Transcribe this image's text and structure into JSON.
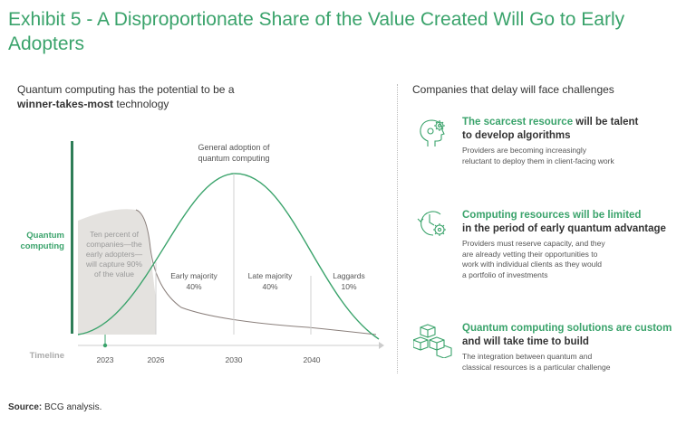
{
  "title": "Exhibit 5 - A Disproportionate Share of the Value Created Will Go to Early Adopters",
  "left_heading": {
    "line1": "Quantum computing has the potential to be a",
    "bold": "winner-takes-most",
    "rest": " technology"
  },
  "right_heading": "Companies that delay will face challenges",
  "diagram": {
    "y_label_line1": "Quantum",
    "y_label_line2": "computing",
    "x_label": "Timeline",
    "ticks": [
      "2023",
      "2026",
      "2030",
      "2040"
    ],
    "adoption_label_line1": "General adoption of",
    "adoption_label_line2": "quantum computing",
    "early_adopters_lines": [
      "Ten percent of",
      "companies—the",
      "early adopters—",
      "will capture 90%",
      "of the value"
    ],
    "segments": [
      {
        "name": "Early majority",
        "share": "40%"
      },
      {
        "name": "Late majority",
        "share": "40%"
      },
      {
        "name": "Laggards",
        "share": "10%"
      }
    ],
    "colors": {
      "adoption_curve": "#3aa36b",
      "value_curve": "#8a7f7b",
      "shaded_area": "#e4e2df",
      "axis": "#2e7d57"
    }
  },
  "challenges": [
    {
      "icon": "brain-gear-icon",
      "highlight": "The scarcest resource",
      "title_rest": " will be talent",
      "title_line2": "to develop algorithms",
      "body_lines": [
        "Providers are becoming increasingly",
        "reluctant to deploy them in client-facing work"
      ]
    },
    {
      "icon": "clock-gear-icon",
      "highlight": "Computing resources will be limited",
      "title_rest": "",
      "title_line2": "in the period of early quantum advantage",
      "body_lines": [
        "Providers must reserve capacity, and they",
        "are already vetting their opportunities to",
        "work with individual clients as they would",
        "a portfolio of investments"
      ]
    },
    {
      "icon": "cubes-icon",
      "highlight": "Quantum computing solutions are custom",
      "title_rest": "",
      "title_line2": "and will take time to build",
      "body_lines": [
        "The integration between quantum and",
        "classical resources is a particular challenge"
      ]
    }
  ],
  "source": {
    "label": "Source:",
    "text": " BCG analysis."
  }
}
